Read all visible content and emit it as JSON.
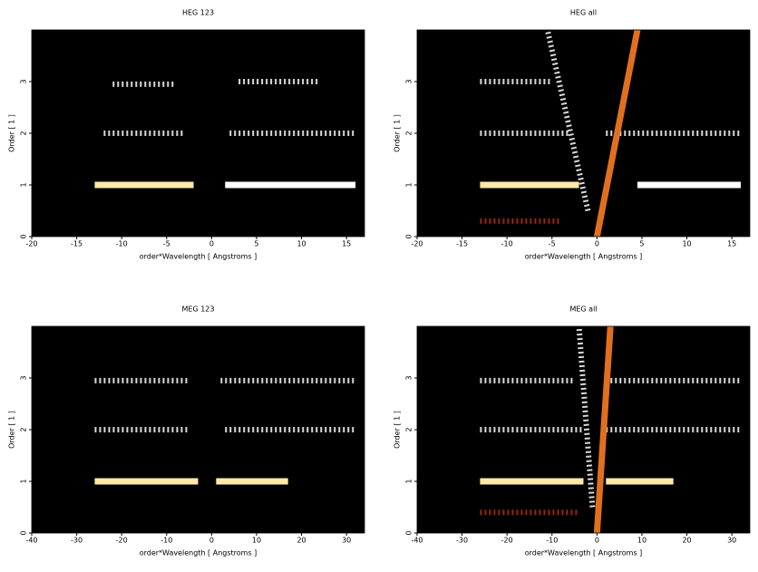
{
  "chart_data": [
    {
      "type": "image",
      "title": "HEG 123",
      "xlabel": "order*Wavelength [ Angstroms ]",
      "ylabel": "Order [ 1 ]",
      "xlim": [
        -20,
        17
      ],
      "ylim": [
        0,
        4
      ],
      "xticks": [
        -20,
        -15,
        -10,
        -5,
        0,
        5,
        10,
        15
      ],
      "yticks": [
        0,
        1,
        2,
        3
      ],
      "background": "#000000",
      "streaks": [
        {
          "x": [
            -13,
            -2
          ],
          "y": [
            1,
            1
          ],
          "color": "#ffe9a8",
          "style": "solid"
        },
        {
          "x": [
            1.5,
            16
          ],
          "y": [
            1,
            1
          ],
          "color": "#ffffff",
          "style": "solid"
        },
        {
          "x": [
            -12,
            -3
          ],
          "y": [
            2,
            2
          ],
          "color": "#ffffff",
          "style": "dotted"
        },
        {
          "x": [
            2,
            16
          ],
          "y": [
            2,
            2
          ],
          "color": "#ffffff",
          "style": "dotted"
        },
        {
          "x": [
            -11,
            -4
          ],
          "y": [
            2.95,
            2.95
          ],
          "color": "#ffffff",
          "style": "dotted"
        },
        {
          "x": [
            3,
            12
          ],
          "y": [
            3,
            3
          ],
          "color": "#ffffff",
          "style": "dotted"
        }
      ]
    },
    {
      "type": "image",
      "title": "HEG all",
      "xlabel": "order*Wavelength [ Angstroms ]",
      "ylabel": "Order [ 1 ]",
      "xlim": [
        -20,
        17
      ],
      "ylim": [
        0,
        4
      ],
      "xticks": [
        -20,
        -15,
        -10,
        -5,
        0,
        5,
        10,
        15
      ],
      "yticks": [
        0,
        1,
        2,
        3
      ],
      "background": "#000000",
      "streaks": [
        {
          "x": [
            -13,
            -2
          ],
          "y": [
            1,
            1
          ],
          "color": "#ffe9a8",
          "style": "solid"
        },
        {
          "x": [
            4.5,
            16
          ],
          "y": [
            1,
            1
          ],
          "color": "#ffffff",
          "style": "solid"
        },
        {
          "x": [
            -13,
            -3
          ],
          "y": [
            2,
            2
          ],
          "color": "#ffffff",
          "style": "dotted"
        },
        {
          "x": [
            1,
            16
          ],
          "y": [
            2,
            2
          ],
          "color": "#ffffff",
          "style": "dotted"
        },
        {
          "x": [
            -13,
            -5
          ],
          "y": [
            3,
            3
          ],
          "color": "#ffffff",
          "style": "dotted"
        },
        {
          "x": [
            -13,
            -4
          ],
          "y": [
            0.3,
            0.3
          ],
          "color": "#b03010",
          "style": "dotted"
        },
        {
          "x": [
            0,
            4.5
          ],
          "y": [
            0,
            4
          ],
          "color": "#e0701e",
          "style": "solid"
        },
        {
          "x": [
            -1,
            -5.5
          ],
          "y": [
            0.5,
            4
          ],
          "color": "#ffffff",
          "style": "dotted"
        }
      ]
    },
    {
      "type": "image",
      "title": "MEG 123",
      "xlabel": "order*Wavelength [ Angstroms ]",
      "ylabel": "Order [ 1 ]",
      "xlim": [
        -40,
        34
      ],
      "ylim": [
        0,
        4
      ],
      "xticks": [
        -40,
        -30,
        -20,
        -10,
        0,
        10,
        20,
        30
      ],
      "yticks": [
        0,
        1,
        2,
        3
      ],
      "background": "#000000",
      "streaks": [
        {
          "x": [
            -26,
            -3
          ],
          "y": [
            1,
            1
          ],
          "color": "#ffe9a8",
          "style": "solid"
        },
        {
          "x": [
            1,
            17
          ],
          "y": [
            1,
            1
          ],
          "color": "#ffe9a8",
          "style": "solid"
        },
        {
          "x": [
            -26,
            -5
          ],
          "y": [
            2,
            2
          ],
          "color": "#ffffff",
          "style": "dotted"
        },
        {
          "x": [
            3,
            32
          ],
          "y": [
            2,
            2
          ],
          "color": "#ffffff",
          "style": "dotted"
        },
        {
          "x": [
            -26,
            -5
          ],
          "y": [
            2.95,
            2.95
          ],
          "color": "#ffffff",
          "style": "dotted"
        },
        {
          "x": [
            2,
            32
          ],
          "y": [
            2.95,
            2.95
          ],
          "color": "#ffffff",
          "style": "dotted"
        }
      ]
    },
    {
      "type": "image",
      "title": "MEG all",
      "xlabel": "order*Wavelength [ Angstroms ]",
      "ylabel": "Order [ 1 ]",
      "xlim": [
        -40,
        34
      ],
      "ylim": [
        0,
        4
      ],
      "xticks": [
        -40,
        -30,
        -20,
        -10,
        0,
        10,
        20,
        30
      ],
      "yticks": [
        0,
        1,
        2,
        3
      ],
      "background": "#000000",
      "streaks": [
        {
          "x": [
            -26,
            -3
          ],
          "y": [
            1,
            1
          ],
          "color": "#ffe9a8",
          "style": "solid"
        },
        {
          "x": [
            2,
            17
          ],
          "y": [
            1,
            1
          ],
          "color": "#ffe9a8",
          "style": "solid"
        },
        {
          "x": [
            -26,
            -3
          ],
          "y": [
            2,
            2
          ],
          "color": "#ffffff",
          "style": "dotted"
        },
        {
          "x": [
            2,
            32
          ],
          "y": [
            2,
            2
          ],
          "color": "#ffffff",
          "style": "dotted"
        },
        {
          "x": [
            -26,
            -5
          ],
          "y": [
            2.95,
            2.95
          ],
          "color": "#ffffff",
          "style": "dotted"
        },
        {
          "x": [
            2,
            32
          ],
          "y": [
            2.95,
            2.95
          ],
          "color": "#ffffff",
          "style": "dotted"
        },
        {
          "x": [
            -26,
            -4
          ],
          "y": [
            0.4,
            0.4
          ],
          "color": "#b03010",
          "style": "dotted"
        },
        {
          "x": [
            0,
            3
          ],
          "y": [
            0,
            4
          ],
          "color": "#e0701e",
          "style": "solid"
        },
        {
          "x": [
            -1,
            -4
          ],
          "y": [
            0.5,
            4
          ],
          "color": "#ffffff",
          "style": "dotted"
        }
      ]
    }
  ]
}
